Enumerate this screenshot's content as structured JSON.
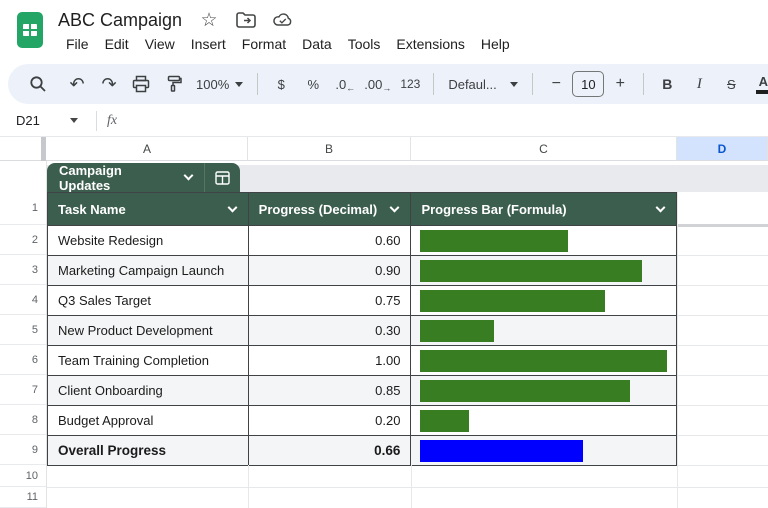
{
  "titlebar": {
    "title": "ABC Campaign",
    "menus": [
      "File",
      "Edit",
      "View",
      "Insert",
      "Format",
      "Data",
      "Tools",
      "Extensions",
      "Help"
    ],
    "icons": [
      "sheets-logo",
      "star",
      "move-to-folder",
      "cloud-saved"
    ]
  },
  "toolbar": {
    "zoom": "100%",
    "currency": "$",
    "percent": "%",
    "decrease_decimal": ".0",
    "increase_decimal": ".00",
    "number_format": "123",
    "font": "Defaul...",
    "font_size": "10",
    "minus": "−",
    "plus": "+",
    "bold": "B",
    "italic": "I",
    "strikethrough": "S",
    "text_color": "A",
    "icons": [
      "search",
      "undo",
      "redo",
      "print",
      "paint-format"
    ]
  },
  "formula_bar": {
    "name_box": "D21",
    "fx": "fx"
  },
  "grid": {
    "columns": [
      "A",
      "B",
      "C",
      "D"
    ],
    "selected_column": "D",
    "rows": [
      "1",
      "2",
      "3",
      "4",
      "5",
      "6",
      "7",
      "8",
      "9",
      "10",
      "11"
    ]
  },
  "table": {
    "chip_label": "Campaign Updates",
    "headers": [
      "Task Name",
      "Progress (Decimal)",
      "Progress Bar (Formula)"
    ],
    "rows": [
      {
        "task": "Website Redesign",
        "progress": "0.60",
        "value": 0.6,
        "color": "#387d21",
        "bold": false
      },
      {
        "task": "Marketing Campaign Launch",
        "progress": "0.90",
        "value": 0.9,
        "color": "#387d21",
        "bold": false
      },
      {
        "task": "Q3 Sales Target",
        "progress": "0.75",
        "value": 0.75,
        "color": "#387d21",
        "bold": false
      },
      {
        "task": "New Product Development",
        "progress": "0.30",
        "value": 0.3,
        "color": "#387d21",
        "bold": false
      },
      {
        "task": "Team Training Completion",
        "progress": "1.00",
        "value": 1.0,
        "color": "#387d21",
        "bold": false
      },
      {
        "task": "Client Onboarding",
        "progress": "0.85",
        "value": 0.85,
        "color": "#387d21",
        "bold": false
      },
      {
        "task": "Budget Approval",
        "progress": "0.20",
        "value": 0.2,
        "color": "#387d21",
        "bold": false
      },
      {
        "task": "Overall Progress",
        "progress": "0.66",
        "value": 0.66,
        "color": "#0000ff",
        "bold": true
      }
    ]
  },
  "colors": {
    "table_header_green": "#3b5e4e",
    "bar_green": "#387d21",
    "overall_bar_blue": "#0000ff",
    "selected_header_bg": "#d3e3fd",
    "selected_header_text": "#0b57d0",
    "toolbar_bg": "#edf1f9",
    "logo_green": "#23a566"
  }
}
